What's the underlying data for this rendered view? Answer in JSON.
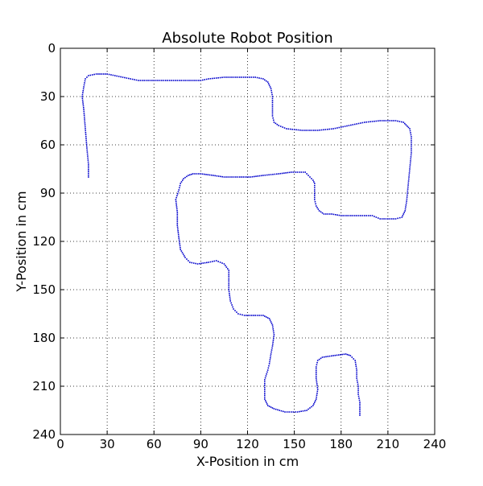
{
  "chart_data": {
    "type": "scatter",
    "title": "Absolute Robot Position",
    "xlabel": "X-Position in cm",
    "ylabel": "Y-Position in cm",
    "xlim": [
      0,
      240
    ],
    "ylim": [
      0,
      240
    ],
    "y_inverted": true,
    "xticks": [
      0,
      30,
      60,
      90,
      120,
      150,
      180,
      210,
      240
    ],
    "yticks": [
      0,
      30,
      60,
      90,
      120,
      150,
      180,
      210,
      240
    ],
    "grid": true,
    "marker_color": "#0000cc",
    "series": [
      {
        "path": [
          [
            18,
            80
          ],
          [
            18,
            72
          ],
          [
            17,
            62
          ],
          [
            16,
            50
          ],
          [
            15,
            38
          ],
          [
            14,
            30
          ],
          [
            15,
            24
          ],
          [
            16,
            19
          ],
          [
            18,
            17
          ],
          [
            23,
            16
          ],
          [
            30,
            16
          ],
          [
            40,
            18
          ],
          [
            50,
            20
          ],
          [
            60,
            20
          ],
          [
            70,
            20
          ],
          [
            80,
            20
          ],
          [
            90,
            20
          ],
          [
            95,
            19
          ],
          [
            105,
            18
          ],
          [
            115,
            18
          ],
          [
            125,
            18
          ],
          [
            130,
            19
          ],
          [
            133,
            21
          ],
          [
            135,
            25
          ],
          [
            136,
            30
          ],
          [
            136,
            36
          ],
          [
            136,
            42
          ],
          [
            137,
            46
          ],
          [
            140,
            48
          ],
          [
            145,
            50
          ],
          [
            155,
            51
          ],
          [
            165,
            51
          ],
          [
            175,
            50
          ],
          [
            185,
            48
          ],
          [
            195,
            46
          ],
          [
            205,
            45
          ],
          [
            215,
            45
          ],
          [
            220,
            46
          ],
          [
            224,
            50
          ],
          [
            225,
            55
          ],
          [
            225,
            65
          ],
          [
            224,
            75
          ],
          [
            223,
            85
          ],
          [
            222,
            95
          ],
          [
            221,
            101
          ],
          [
            219,
            105
          ],
          [
            215,
            106
          ],
          [
            210,
            106
          ],
          [
            205,
            106
          ],
          [
            200,
            104
          ],
          [
            190,
            104
          ],
          [
            180,
            104
          ],
          [
            174,
            103
          ],
          [
            169,
            103
          ],
          [
            166,
            101
          ],
          [
            164,
            98
          ],
          [
            163,
            94
          ],
          [
            163,
            88
          ],
          [
            163,
            84
          ],
          [
            162,
            82
          ],
          [
            160,
            80
          ],
          [
            157,
            77
          ],
          [
            148,
            77
          ],
          [
            140,
            78
          ],
          [
            130,
            79
          ],
          [
            122,
            80
          ],
          [
            115,
            80
          ],
          [
            105,
            80
          ],
          [
            98,
            79
          ],
          [
            90,
            78
          ],
          [
            85,
            78
          ],
          [
            82,
            79
          ],
          [
            79,
            81
          ],
          [
            77,
            84
          ],
          [
            76,
            88
          ],
          [
            74,
            94
          ],
          [
            75,
            102
          ],
          [
            75,
            110
          ],
          [
            76,
            118
          ],
          [
            77,
            125
          ],
          [
            80,
            130
          ],
          [
            83,
            133
          ],
          [
            88,
            134
          ],
          [
            95,
            133
          ],
          [
            100,
            132
          ],
          [
            105,
            134
          ],
          [
            108,
            138
          ],
          [
            108,
            144
          ],
          [
            108,
            150
          ],
          [
            109,
            157
          ],
          [
            111,
            162
          ],
          [
            114,
            165
          ],
          [
            118,
            166
          ],
          [
            125,
            166
          ],
          [
            130,
            166
          ],
          [
            134,
            168
          ],
          [
            136,
            172
          ],
          [
            137,
            178
          ],
          [
            136,
            185
          ],
          [
            135,
            190
          ],
          [
            134,
            196
          ],
          [
            133,
            200
          ],
          [
            131,
            206
          ],
          [
            131,
            212
          ],
          [
            131,
            218
          ],
          [
            133,
            222
          ],
          [
            137,
            224
          ],
          [
            144,
            226
          ],
          [
            152,
            226
          ],
          [
            158,
            225
          ],
          [
            162,
            222
          ],
          [
            164,
            218
          ],
          [
            165,
            212
          ],
          [
            164,
            205
          ],
          [
            164,
            198
          ],
          [
            165,
            194
          ],
          [
            168,
            192
          ],
          [
            175,
            191
          ],
          [
            183,
            190
          ],
          [
            186,
            191
          ],
          [
            189,
            194
          ],
          [
            190,
            200
          ],
          [
            190,
            205
          ],
          [
            191,
            210
          ],
          [
            191,
            215
          ],
          [
            192,
            220
          ],
          [
            192,
            228
          ]
        ]
      }
    ]
  }
}
